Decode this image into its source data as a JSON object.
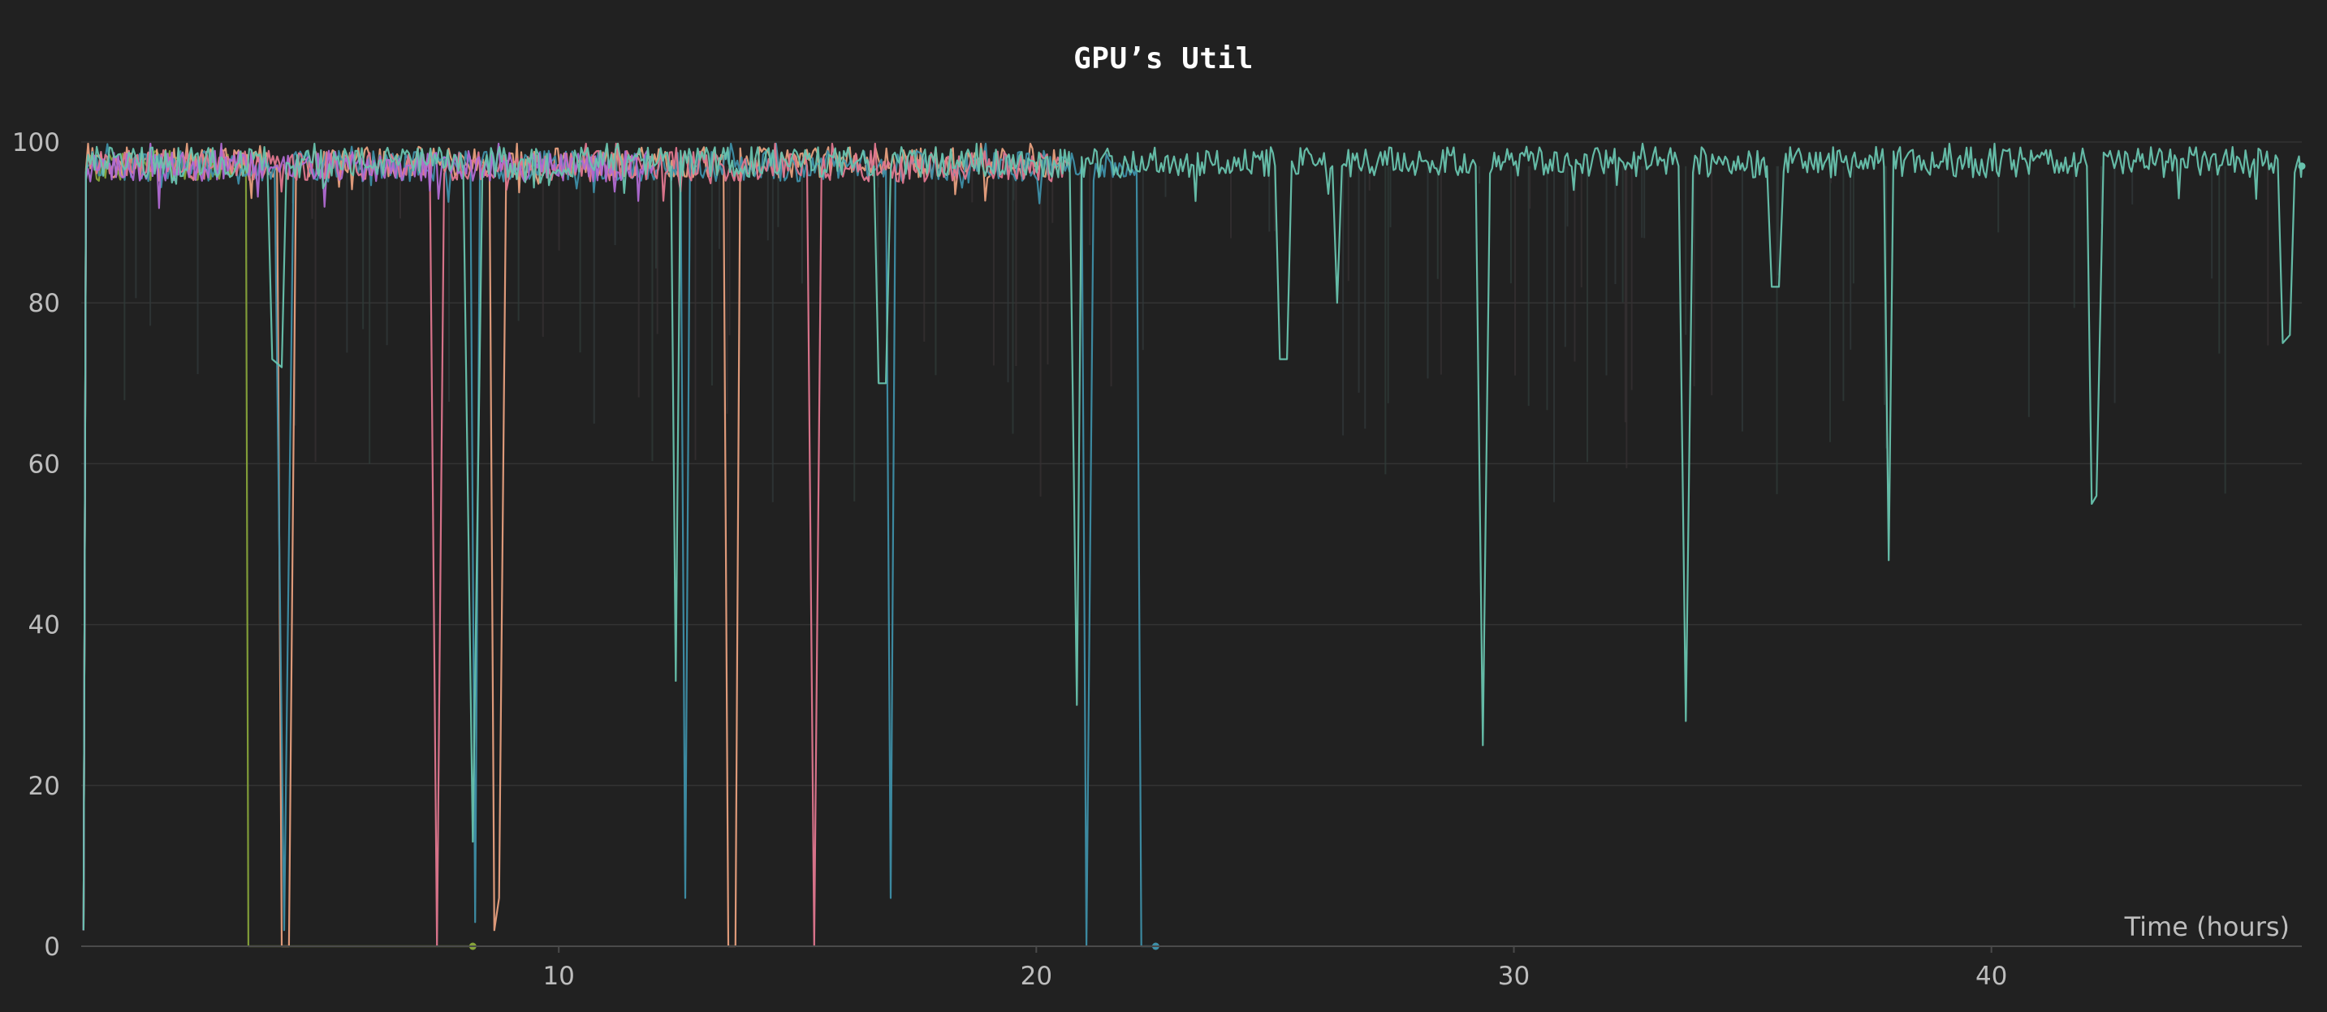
{
  "chart_data": {
    "type": "line",
    "title": "GPU’s Util",
    "xlabel": "Time (hours)",
    "ylabel": "",
    "xlim": [
      0,
      46.5
    ],
    "ylim": [
      0,
      100
    ],
    "x_ticks": [
      10,
      20,
      30,
      40
    ],
    "y_ticks": [
      0,
      20,
      40,
      60,
      80,
      100
    ],
    "grid": true,
    "legend": "none",
    "noise_amplitude": 1.2,
    "series": [
      {
        "color": "#86a33a",
        "base": 97,
        "end": 8.2,
        "points": [
          [
            0.05,
            2
          ],
          [
            0.1,
            96
          ],
          [
            3.45,
            97
          ],
          [
            3.5,
            0
          ],
          [
            8.2,
            0
          ]
        ],
        "end_marker": true
      },
      {
        "color": "#e8a07e",
        "base": 97.5,
        "end": 20.5,
        "points": [
          [
            0.05,
            2
          ],
          [
            0.1,
            96
          ],
          [
            4.1,
            97
          ],
          [
            4.2,
            0
          ],
          [
            4.35,
            0
          ],
          [
            4.5,
            97
          ],
          [
            8.55,
            97
          ],
          [
            8.65,
            2
          ],
          [
            8.75,
            6
          ],
          [
            8.9,
            97
          ],
          [
            13.45,
            97
          ],
          [
            13.55,
            0
          ],
          [
            13.7,
            0
          ],
          [
            13.8,
            97
          ],
          [
            20.5,
            97
          ]
        ]
      },
      {
        "color": "#3e8fa8",
        "base": 97,
        "end": 22.5,
        "points": [
          [
            0.05,
            2
          ],
          [
            0.1,
            96
          ],
          [
            4.05,
            97
          ],
          [
            4.25,
            2
          ],
          [
            4.45,
            97
          ],
          [
            8.15,
            97
          ],
          [
            8.25,
            3
          ],
          [
            8.35,
            97
          ],
          [
            12.55,
            97
          ],
          [
            12.65,
            6
          ],
          [
            12.75,
            97
          ],
          [
            16.85,
            97
          ],
          [
            16.95,
            6
          ],
          [
            17.05,
            97
          ],
          [
            20.95,
            97
          ],
          [
            21.05,
            0
          ],
          [
            21.2,
            97
          ],
          [
            22.1,
            97
          ],
          [
            22.2,
            0
          ],
          [
            22.5,
            0
          ]
        ],
        "end_marker": true
      },
      {
        "color": "#e0778f",
        "base": 97,
        "end": 20.7,
        "points": [
          [
            0.05,
            2
          ],
          [
            0.1,
            96
          ],
          [
            7.3,
            97
          ],
          [
            7.45,
            0
          ],
          [
            7.6,
            97
          ],
          [
            15.2,
            97
          ],
          [
            15.35,
            0
          ],
          [
            15.5,
            97
          ],
          [
            20.7,
            97
          ]
        ]
      },
      {
        "color": "#b06ad2",
        "base": 97,
        "end": 12.0,
        "points": [
          [
            0.05,
            2
          ],
          [
            0.1,
            96
          ],
          [
            12.0,
            97
          ]
        ]
      },
      {
        "color": "#68c3ae",
        "base": 97.5,
        "end": 46.5,
        "points": [
          [
            0.05,
            2
          ],
          [
            0.1,
            96
          ],
          [
            3.9,
            97
          ],
          [
            4.0,
            73
          ],
          [
            4.2,
            72
          ],
          [
            4.3,
            97
          ],
          [
            8.0,
            97
          ],
          [
            8.2,
            13
          ],
          [
            8.4,
            97
          ],
          [
            12.35,
            97
          ],
          [
            12.45,
            33
          ],
          [
            12.55,
            97
          ],
          [
            16.6,
            97
          ],
          [
            16.7,
            70
          ],
          [
            16.85,
            70
          ],
          [
            16.95,
            97
          ],
          [
            20.7,
            97
          ],
          [
            20.85,
            30
          ],
          [
            20.95,
            97
          ],
          [
            25.0,
            97
          ],
          [
            25.1,
            73
          ],
          [
            25.25,
            73
          ],
          [
            25.35,
            97
          ],
          [
            26.2,
            97
          ],
          [
            26.3,
            80
          ],
          [
            26.4,
            97
          ],
          [
            29.2,
            97
          ],
          [
            29.35,
            25
          ],
          [
            29.5,
            97
          ],
          [
            33.45,
            97
          ],
          [
            33.6,
            28
          ],
          [
            33.75,
            97
          ],
          [
            35.3,
            97
          ],
          [
            35.4,
            82
          ],
          [
            35.55,
            82
          ],
          [
            35.65,
            97
          ],
          [
            37.75,
            97
          ],
          [
            37.85,
            48
          ],
          [
            37.95,
            97
          ],
          [
            42.0,
            97
          ],
          [
            42.1,
            55
          ],
          [
            42.2,
            56
          ],
          [
            42.35,
            97
          ],
          [
            46.0,
            97
          ],
          [
            46.1,
            75
          ],
          [
            46.25,
            76
          ],
          [
            46.35,
            97
          ],
          [
            46.5,
            97
          ]
        ],
        "end_marker": true
      }
    ]
  }
}
